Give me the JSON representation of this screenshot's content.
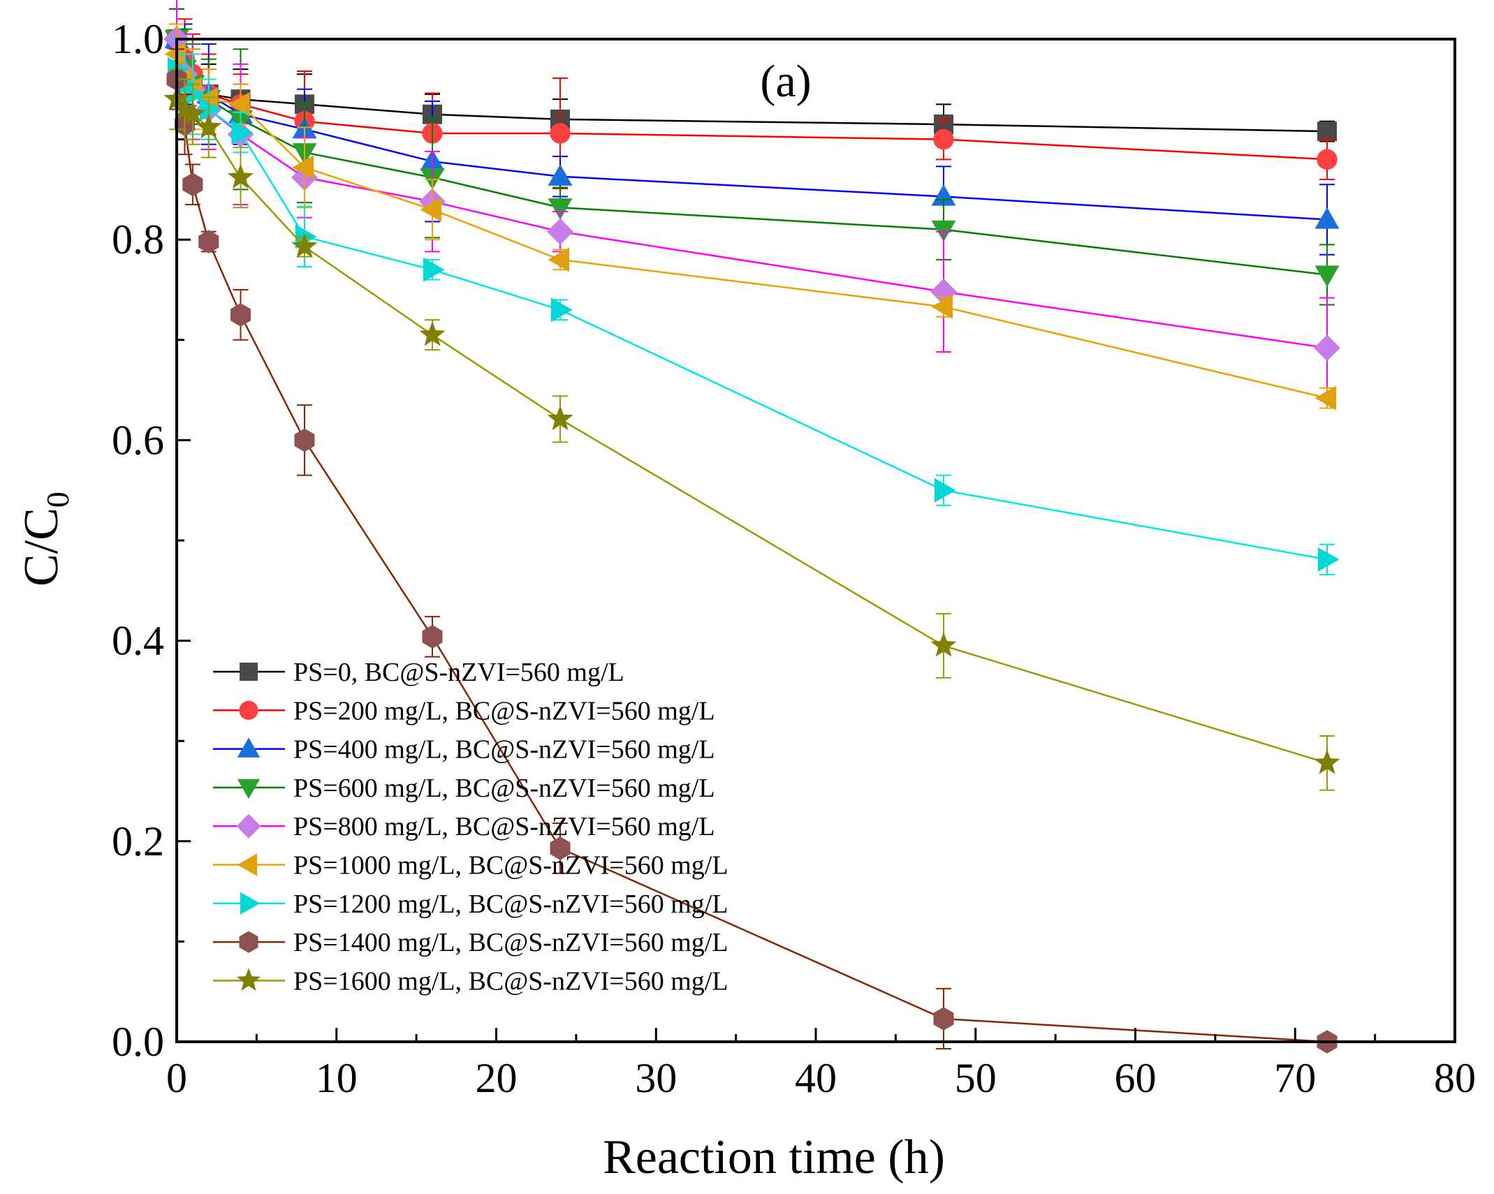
{
  "chart_data": {
    "type": "line",
    "panel_label": "(a)",
    "xlabel": "Reaction time (h)",
    "ylabel_main": "C/C",
    "ylabel_sub": "0",
    "xlim": [
      0,
      80
    ],
    "ylim": [
      0,
      1.0
    ],
    "x_ticks": [
      0,
      10,
      20,
      30,
      40,
      50,
      60,
      70,
      80
    ],
    "y_ticks": [
      0.0,
      0.2,
      0.4,
      0.6,
      0.8,
      1.0
    ],
    "x_tick_labels": [
      "0",
      "10",
      "20",
      "30",
      "40",
      "50",
      "60",
      "70",
      "80"
    ],
    "y_tick_labels": [
      "0.0",
      "0.2",
      "0.4",
      "0.6",
      "0.8",
      "1.0"
    ],
    "grid": false,
    "legend_position": "lower-left",
    "x": [
      0,
      0.5,
      1,
      2,
      4,
      8,
      16,
      24,
      48,
      72
    ],
    "series": [
      {
        "name": "PS=0, BC@S-nZVI=560 mg/L",
        "color": "#000000",
        "fill": "#4a4a4a",
        "marker": "square",
        "values": [
          1.0,
          0.97,
          0.96,
          0.945,
          0.94,
          0.935,
          0.925,
          0.92,
          0.915,
          0.908
        ],
        "errors": [
          0.03,
          0.03,
          0.03,
          0.03,
          0.03,
          0.03,
          0.02,
          0.02,
          0.02,
          0.01
        ]
      },
      {
        "name": "PS=200 mg/L, BC@S-nZVI=560 mg/L",
        "color": "#ff0000",
        "fill": "#ff4040",
        "marker": "circle",
        "values": [
          1.0,
          0.98,
          0.965,
          0.945,
          0.935,
          0.918,
          0.906,
          0.906,
          0.9,
          0.88
        ],
        "errors": [
          0.03,
          0.04,
          0.04,
          0.04,
          0.03,
          0.05,
          0.04,
          0.055,
          0.02,
          0.02
        ]
      },
      {
        "name": "PS=400 mg/L, BC@S-nZVI=560 mg/L",
        "color": "#0000ff",
        "fill": "#1a6fdf",
        "marker": "triangle-up",
        "values": [
          1.0,
          0.975,
          0.96,
          0.945,
          0.925,
          0.91,
          0.878,
          0.863,
          0.843,
          0.82
        ],
        "errors": [
          0.04,
          0.04,
          0.04,
          0.05,
          0.03,
          0.04,
          0.06,
          0.02,
          0.03,
          0.035
        ]
      },
      {
        "name": "PS=600 mg/L, BC@S-nZVI=560 mg/L",
        "color": "#008000",
        "fill": "#2ca02c",
        "marker": "triangle-down",
        "values": [
          1.0,
          0.97,
          0.955,
          0.94,
          0.92,
          0.887,
          0.862,
          0.832,
          0.81,
          0.765
        ],
        "errors": [
          0.03,
          0.04,
          0.04,
          0.04,
          0.07,
          0.05,
          0.06,
          0.02,
          0.03,
          0.03
        ]
      },
      {
        "name": "PS=800 mg/L, BC@S-nZVI=560 mg/L",
        "color": "#ff00ff",
        "fill": "#c77de8",
        "marker": "diamond",
        "values": [
          1.0,
          0.965,
          0.95,
          0.93,
          0.905,
          0.862,
          0.838,
          0.808,
          0.748,
          0.692
        ],
        "errors": [
          0.04,
          0.04,
          0.05,
          0.04,
          0.07,
          0.04,
          0.05,
          0.02,
          0.06,
          0.05
        ]
      },
      {
        "name": "PS=1000 mg/L, BC@S-nZVI=560 mg/L",
        "color": "#f0a000",
        "fill": "#e0a010",
        "marker": "triangle-left",
        "values": [
          0.985,
          0.96,
          0.95,
          0.94,
          0.935,
          0.872,
          0.83,
          0.78,
          0.733,
          0.642
        ],
        "errors": [
          0.03,
          0.03,
          0.04,
          0.03,
          0.02,
          0.04,
          0.03,
          0.01,
          0.01,
          0.01
        ]
      },
      {
        "name": "PS=1200 mg/L, BC@S-nZVI=560 mg/L",
        "color": "#00e5e5",
        "fill": "#00d8d8",
        "marker": "triangle-right",
        "values": [
          0.97,
          0.955,
          0.945,
          0.93,
          0.907,
          0.803,
          0.77,
          0.73,
          0.55,
          0.481
        ],
        "errors": [
          0.03,
          0.03,
          0.04,
          0.03,
          0.02,
          0.03,
          0.01,
          0.01,
          0.015,
          0.015
        ]
      },
      {
        "name": "PS=1400 mg/L, BC@S-nZVI=560 mg/L",
        "color": "#8b2500",
        "fill": "#8e5050",
        "marker": "hexagon",
        "values": [
          0.96,
          0.915,
          0.855,
          0.798,
          0.725,
          0.6,
          0.404,
          0.193,
          0.023,
          0.0
        ],
        "errors": [
          0.03,
          0.03,
          0.02,
          0.01,
          0.025,
          0.035,
          0.02,
          0.025,
          0.03,
          0.0
        ]
      },
      {
        "name": "PS=1600 mg/L, BC@S-nZVI=560 mg/L",
        "color": "#9a9a00",
        "fill": "#808000",
        "marker": "star",
        "values": [
          0.94,
          0.93,
          0.925,
          0.912,
          0.862,
          0.793,
          0.705,
          0.621,
          0.395,
          0.278
        ],
        "errors": [
          0.03,
          0.03,
          0.03,
          0.03,
          0.03,
          0.01,
          0.015,
          0.023,
          0.032,
          0.027
        ]
      }
    ]
  }
}
